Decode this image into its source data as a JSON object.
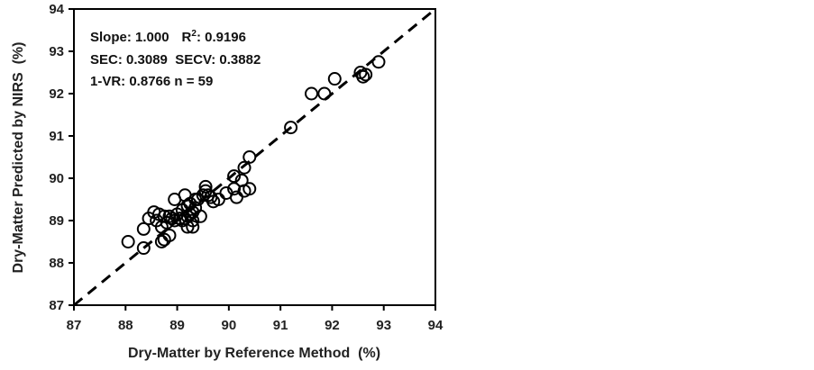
{
  "chart_data": {
    "type": "scatter",
    "xlabel": "Dry-Matter by Reference Method  (%)",
    "ylabel": "Dry-Matter Predicted by NIRS  (%)",
    "xlim": [
      87,
      94
    ],
    "ylim": [
      87,
      94
    ],
    "xticks": [
      "87",
      "88",
      "89",
      "90",
      "91",
      "92",
      "93",
      "94"
    ],
    "yticks": [
      "87",
      "88",
      "89",
      "90",
      "91",
      "92",
      "93",
      "94"
    ],
    "grid": false,
    "reference_line": {
      "style": "dashed",
      "from": [
        87,
        87
      ],
      "to": [
        94,
        94
      ]
    },
    "stats": {
      "line1_a": "Slope: 1.000",
      "line1_b": "R",
      "line1_sup": "2",
      "line1_c": ": 0.9196",
      "line2": "SEC: 0.3089  SECV: 0.3882",
      "line3": "1-VR: 0.8766  n = 59"
    },
    "points": [
      [
        88.05,
        88.5
      ],
      [
        88.35,
        88.35
      ],
      [
        88.35,
        88.8
      ],
      [
        88.45,
        89.05
      ],
      [
        88.55,
        89.2
      ],
      [
        88.6,
        89.0
      ],
      [
        88.65,
        89.15
      ],
      [
        88.7,
        88.5
      ],
      [
        88.7,
        88.85
      ],
      [
        88.75,
        89.1
      ],
      [
        88.75,
        88.55
      ],
      [
        88.8,
        88.95
      ],
      [
        88.85,
        89.1
      ],
      [
        88.85,
        88.65
      ],
      [
        88.9,
        89.05
      ],
      [
        88.95,
        89.5
      ],
      [
        88.95,
        89.0
      ],
      [
        89.0,
        89.15
      ],
      [
        89.05,
        89.05
      ],
      [
        89.1,
        89.25
      ],
      [
        89.1,
        89.0
      ],
      [
        89.15,
        89.6
      ],
      [
        89.15,
        89.05
      ],
      [
        89.2,
        89.35
      ],
      [
        89.2,
        89.1
      ],
      [
        89.2,
        88.85
      ],
      [
        89.25,
        89.15
      ],
      [
        89.25,
        89.4
      ],
      [
        89.3,
        89.0
      ],
      [
        89.3,
        89.2
      ],
      [
        89.3,
        88.85
      ],
      [
        89.35,
        89.5
      ],
      [
        89.35,
        89.3
      ],
      [
        89.4,
        89.5
      ],
      [
        89.45,
        89.1
      ],
      [
        89.5,
        89.6
      ],
      [
        89.55,
        89.8
      ],
      [
        89.55,
        89.7
      ],
      [
        89.6,
        89.6
      ],
      [
        89.65,
        89.55
      ],
      [
        89.7,
        89.45
      ],
      [
        89.95,
        89.65
      ],
      [
        90.1,
        89.75
      ],
      [
        90.1,
        90.05
      ],
      [
        90.15,
        89.55
      ],
      [
        90.25,
        89.95
      ],
      [
        90.3,
        90.25
      ],
      [
        90.3,
        89.7
      ],
      [
        90.4,
        89.75
      ],
      [
        90.4,
        90.5
      ],
      [
        91.2,
        91.2
      ],
      [
        91.6,
        92.0
      ],
      [
        91.85,
        92.0
      ],
      [
        92.05,
        92.35
      ],
      [
        92.55,
        92.5
      ],
      [
        92.6,
        92.4
      ],
      [
        92.65,
        92.45
      ],
      [
        92.9,
        92.75
      ],
      [
        89.8,
        89.5
      ]
    ]
  }
}
